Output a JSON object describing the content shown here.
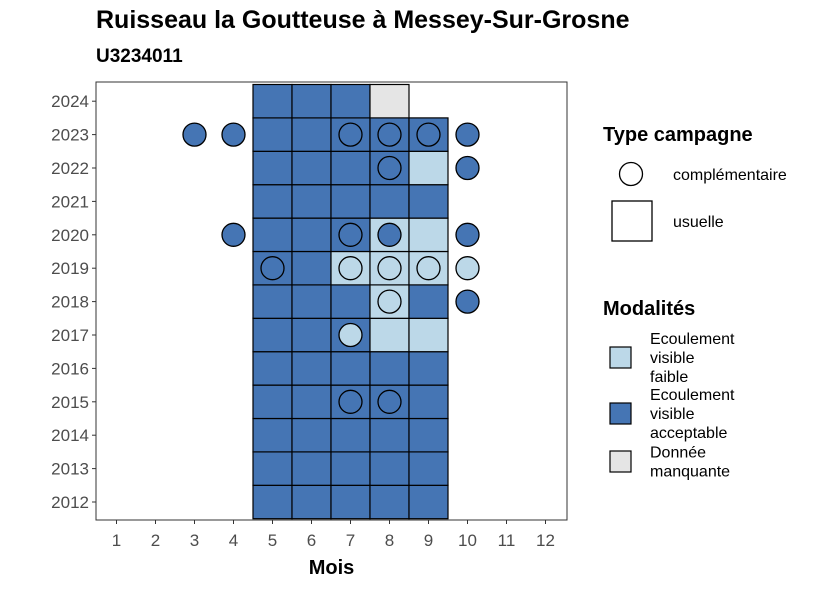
{
  "chart_data": {
    "type": "heatmap",
    "title": "Ruisseau la Goutteuse à Messey-Sur-Grosne",
    "subtitle": "U3234011",
    "xlabel": "Mois",
    "ylabel": "",
    "x_ticks": [
      "1",
      "2",
      "3",
      "4",
      "5",
      "6",
      "7",
      "8",
      "9",
      "10",
      "11",
      "12"
    ],
    "y_ticks": [
      "2012",
      "2013",
      "2014",
      "2015",
      "2016",
      "2017",
      "2018",
      "2019",
      "2020",
      "2021",
      "2022",
      "2023",
      "2024"
    ],
    "colors": {
      "Ecoulement visible faible": "#bcd8e8",
      "Ecoulement visible acceptable": "#4575b4",
      "Donnée manquante": "#e5e5e5"
    },
    "legend_type": {
      "title": "Type campagne",
      "items": [
        {
          "label": "complémentaire",
          "shape": "circle"
        },
        {
          "label": "usuelle",
          "shape": "square"
        }
      ]
    },
    "legend_modalites": {
      "title": "Modalités",
      "items": [
        {
          "label_lines": [
            "Ecoulement",
            "visible",
            "faible"
          ],
          "category": "Ecoulement visible faible"
        },
        {
          "label_lines": [
            "Ecoulement",
            "visible",
            "acceptable"
          ],
          "category": "Ecoulement visible acceptable"
        },
        {
          "label_lines": [
            "Donnée",
            "manquante"
          ],
          "category": "Donnée manquante"
        }
      ]
    },
    "usuelle": [
      {
        "year": 2012,
        "month": 5,
        "m": "Ecoulement visible acceptable"
      },
      {
        "year": 2012,
        "month": 6,
        "m": "Ecoulement visible acceptable"
      },
      {
        "year": 2012,
        "month": 7,
        "m": "Ecoulement visible acceptable"
      },
      {
        "year": 2012,
        "month": 8,
        "m": "Ecoulement visible acceptable"
      },
      {
        "year": 2012,
        "month": 9,
        "m": "Ecoulement visible acceptable"
      },
      {
        "year": 2013,
        "month": 5,
        "m": "Ecoulement visible acceptable"
      },
      {
        "year": 2013,
        "month": 6,
        "m": "Ecoulement visible acceptable"
      },
      {
        "year": 2013,
        "month": 7,
        "m": "Ecoulement visible acceptable"
      },
      {
        "year": 2013,
        "month": 8,
        "m": "Ecoulement visible acceptable"
      },
      {
        "year": 2013,
        "month": 9,
        "m": "Ecoulement visible acceptable"
      },
      {
        "year": 2014,
        "month": 5,
        "m": "Ecoulement visible acceptable"
      },
      {
        "year": 2014,
        "month": 6,
        "m": "Ecoulement visible acceptable"
      },
      {
        "year": 2014,
        "month": 7,
        "m": "Ecoulement visible acceptable"
      },
      {
        "year": 2014,
        "month": 8,
        "m": "Ecoulement visible acceptable"
      },
      {
        "year": 2014,
        "month": 9,
        "m": "Ecoulement visible acceptable"
      },
      {
        "year": 2015,
        "month": 5,
        "m": "Ecoulement visible acceptable"
      },
      {
        "year": 2015,
        "month": 6,
        "m": "Ecoulement visible acceptable"
      },
      {
        "year": 2015,
        "month": 7,
        "m": "Ecoulement visible acceptable"
      },
      {
        "year": 2015,
        "month": 8,
        "m": "Ecoulement visible acceptable"
      },
      {
        "year": 2015,
        "month": 9,
        "m": "Ecoulement visible acceptable"
      },
      {
        "year": 2016,
        "month": 5,
        "m": "Ecoulement visible acceptable"
      },
      {
        "year": 2016,
        "month": 6,
        "m": "Ecoulement visible acceptable"
      },
      {
        "year": 2016,
        "month": 7,
        "m": "Ecoulement visible acceptable"
      },
      {
        "year": 2016,
        "month": 8,
        "m": "Ecoulement visible acceptable"
      },
      {
        "year": 2016,
        "month": 9,
        "m": "Ecoulement visible acceptable"
      },
      {
        "year": 2017,
        "month": 5,
        "m": "Ecoulement visible acceptable"
      },
      {
        "year": 2017,
        "month": 6,
        "m": "Ecoulement visible acceptable"
      },
      {
        "year": 2017,
        "month": 7,
        "m": "Ecoulement visible acceptable"
      },
      {
        "year": 2017,
        "month": 8,
        "m": "Ecoulement visible faible"
      },
      {
        "year": 2017,
        "month": 9,
        "m": "Ecoulement visible faible"
      },
      {
        "year": 2018,
        "month": 5,
        "m": "Ecoulement visible acceptable"
      },
      {
        "year": 2018,
        "month": 6,
        "m": "Ecoulement visible acceptable"
      },
      {
        "year": 2018,
        "month": 7,
        "m": "Ecoulement visible acceptable"
      },
      {
        "year": 2018,
        "month": 8,
        "m": "Ecoulement visible faible"
      },
      {
        "year": 2018,
        "month": 9,
        "m": "Ecoulement visible acceptable"
      },
      {
        "year": 2019,
        "month": 5,
        "m": "Ecoulement visible acceptable"
      },
      {
        "year": 2019,
        "month": 6,
        "m": "Ecoulement visible acceptable"
      },
      {
        "year": 2019,
        "month": 7,
        "m": "Ecoulement visible faible"
      },
      {
        "year": 2019,
        "month": 8,
        "m": "Ecoulement visible faible"
      },
      {
        "year": 2019,
        "month": 9,
        "m": "Ecoulement visible faible"
      },
      {
        "year": 2020,
        "month": 5,
        "m": "Ecoulement visible acceptable"
      },
      {
        "year": 2020,
        "month": 6,
        "m": "Ecoulement visible acceptable"
      },
      {
        "year": 2020,
        "month": 7,
        "m": "Ecoulement visible acceptable"
      },
      {
        "year": 2020,
        "month": 8,
        "m": "Ecoulement visible faible"
      },
      {
        "year": 2020,
        "month": 9,
        "m": "Ecoulement visible faible"
      },
      {
        "year": 2021,
        "month": 5,
        "m": "Ecoulement visible acceptable"
      },
      {
        "year": 2021,
        "month": 6,
        "m": "Ecoulement visible acceptable"
      },
      {
        "year": 2021,
        "month": 7,
        "m": "Ecoulement visible acceptable"
      },
      {
        "year": 2021,
        "month": 8,
        "m": "Ecoulement visible acceptable"
      },
      {
        "year": 2021,
        "month": 9,
        "m": "Ecoulement visible acceptable"
      },
      {
        "year": 2022,
        "month": 5,
        "m": "Ecoulement visible acceptable"
      },
      {
        "year": 2022,
        "month": 6,
        "m": "Ecoulement visible acceptable"
      },
      {
        "year": 2022,
        "month": 7,
        "m": "Ecoulement visible acceptable"
      },
      {
        "year": 2022,
        "month": 8,
        "m": "Ecoulement visible acceptable"
      },
      {
        "year": 2022,
        "month": 9,
        "m": "Ecoulement visible faible"
      },
      {
        "year": 2023,
        "month": 5,
        "m": "Ecoulement visible acceptable"
      },
      {
        "year": 2023,
        "month": 6,
        "m": "Ecoulement visible acceptable"
      },
      {
        "year": 2023,
        "month": 7,
        "m": "Ecoulement visible acceptable"
      },
      {
        "year": 2023,
        "month": 8,
        "m": "Ecoulement visible acceptable"
      },
      {
        "year": 2023,
        "month": 9,
        "m": "Ecoulement visible acceptable"
      },
      {
        "year": 2024,
        "month": 5,
        "m": "Ecoulement visible acceptable"
      },
      {
        "year": 2024,
        "month": 6,
        "m": "Ecoulement visible acceptable"
      },
      {
        "year": 2024,
        "month": 7,
        "m": "Ecoulement visible acceptable"
      },
      {
        "year": 2024,
        "month": 8,
        "m": "Donnée manquante"
      }
    ],
    "complementaire": [
      {
        "year": 2023,
        "month": 3,
        "m": "Ecoulement visible acceptable"
      },
      {
        "year": 2023,
        "month": 4,
        "m": "Ecoulement visible acceptable"
      },
      {
        "year": 2023,
        "month": 7,
        "m": "Ecoulement visible acceptable"
      },
      {
        "year": 2023,
        "month": 8,
        "m": "Ecoulement visible acceptable"
      },
      {
        "year": 2023,
        "month": 9,
        "m": "Ecoulement visible acceptable"
      },
      {
        "year": 2023,
        "month": 10,
        "m": "Ecoulement visible acceptable"
      },
      {
        "year": 2022,
        "month": 8,
        "m": "Ecoulement visible acceptable"
      },
      {
        "year": 2022,
        "month": 10,
        "m": "Ecoulement visible acceptable"
      },
      {
        "year": 2020,
        "month": 4,
        "m": "Ecoulement visible acceptable"
      },
      {
        "year": 2020,
        "month": 7,
        "m": "Ecoulement visible acceptable"
      },
      {
        "year": 2020,
        "month": 8,
        "m": "Ecoulement visible acceptable"
      },
      {
        "year": 2020,
        "month": 10,
        "m": "Ecoulement visible acceptable"
      },
      {
        "year": 2019,
        "month": 5,
        "m": "Ecoulement visible acceptable"
      },
      {
        "year": 2019,
        "month": 7,
        "m": "Ecoulement visible faible"
      },
      {
        "year": 2019,
        "month": 8,
        "m": "Ecoulement visible faible"
      },
      {
        "year": 2019,
        "month": 9,
        "m": "Ecoulement visible faible"
      },
      {
        "year": 2019,
        "month": 10,
        "m": "Ecoulement visible faible"
      },
      {
        "year": 2018,
        "month": 8,
        "m": "Ecoulement visible faible"
      },
      {
        "year": 2018,
        "month": 10,
        "m": "Ecoulement visible acceptable"
      },
      {
        "year": 2017,
        "month": 7,
        "m": "Ecoulement visible faible"
      },
      {
        "year": 2015,
        "month": 7,
        "m": "Ecoulement visible acceptable"
      },
      {
        "year": 2015,
        "month": 8,
        "m": "Ecoulement visible acceptable"
      }
    ]
  }
}
